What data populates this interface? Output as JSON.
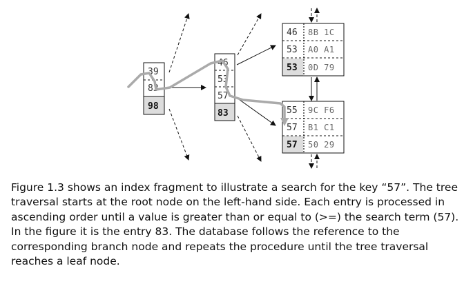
{
  "diagram": {
    "root_node": {
      "keys": [
        "39",
        "83",
        "98"
      ]
    },
    "branch_node": {
      "keys": [
        "46",
        "53",
        "57",
        "83"
      ]
    },
    "leaf_node_top": {
      "rows": [
        {
          "key": "46",
          "rowid": "8B 1C"
        },
        {
          "key": "53",
          "rowid": "A0 A1"
        },
        {
          "key": "53",
          "rowid": "0D 79"
        }
      ]
    },
    "leaf_node_bottom": {
      "rows": [
        {
          "key": "55",
          "rowid": "9C F6"
        },
        {
          "key": "57",
          "rowid": "B1 C1"
        },
        {
          "key": "57",
          "rowid": "50 29"
        }
      ]
    },
    "colors": {
      "search_path": "#aaaaaa",
      "highlight_cell": "#dddddd"
    }
  },
  "caption": {
    "text": "Figure 1.3 shows an index fragment to illustrate a search for the key “57”. The tree traversal starts at the root node on the left-hand side. Each entry is processed in ascending order until a value is greater than or equal to (>=) the search term (57). In the figure it is the entry 83. The database follows the reference to the corresponding branch node and repeats the procedure until the tree traversal reaches a leaf node."
  }
}
